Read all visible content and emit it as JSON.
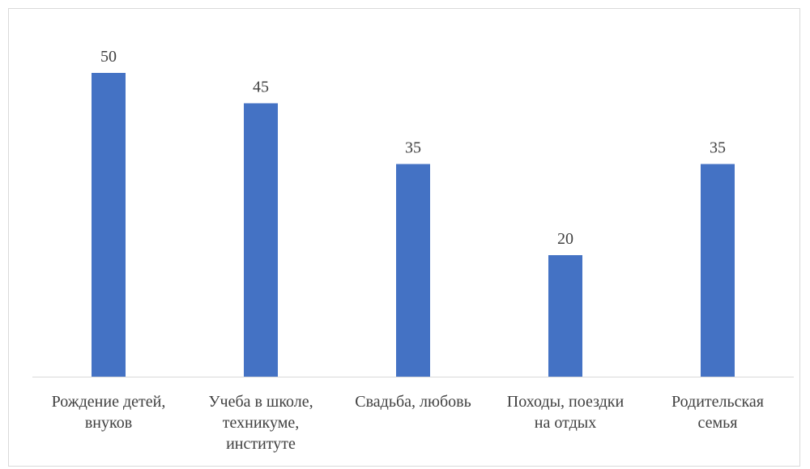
{
  "chart_data": {
    "type": "bar",
    "categories": [
      [
        "Рождение детей,",
        "внуков"
      ],
      [
        "Учеба в школе,",
        "техникуме,",
        "институте"
      ],
      [
        "Свадьба, любовь"
      ],
      [
        "Походы, поездки",
        "на отдых"
      ],
      [
        "Родительская",
        "семья"
      ]
    ],
    "values": [
      50,
      45,
      35,
      20,
      35
    ],
    "data_labels": [
      "50",
      "45",
      "35",
      "20",
      "35"
    ],
    "title": "",
    "xlabel": "",
    "ylabel": "",
    "ylim": [
      0,
      50
    ],
    "grid": false,
    "legend": "none",
    "bar_color": "#4472C4",
    "axis_color": "#d9d9d9",
    "text_color": "#404040"
  }
}
